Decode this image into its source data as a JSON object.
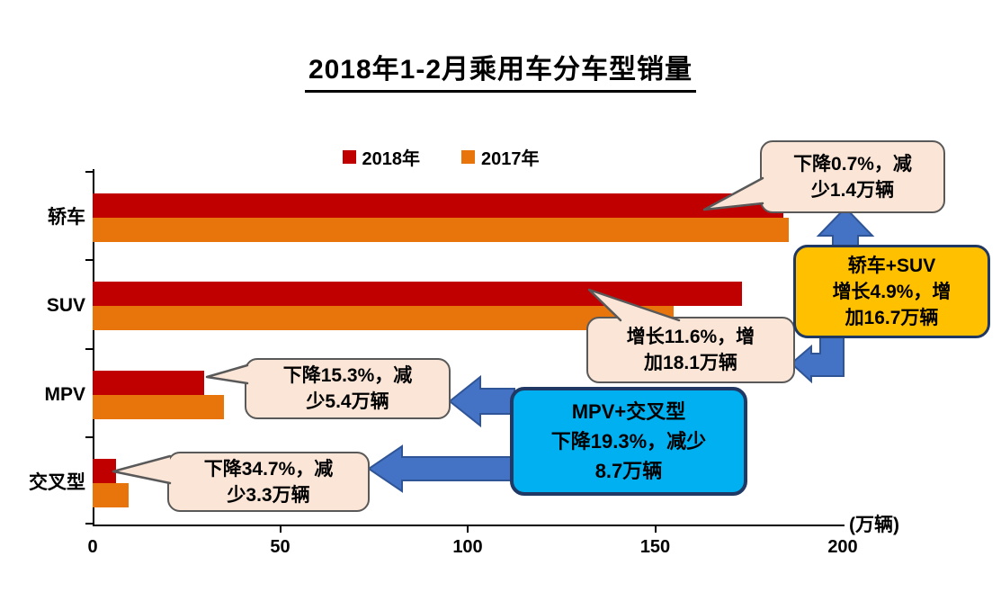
{
  "chart_data": {
    "type": "bar",
    "orientation": "horizontal",
    "title": "2018年1-2月乘用车分车型销量",
    "categories": [
      "轿车",
      "SUV",
      "MPV",
      "交叉型"
    ],
    "series": [
      {
        "name": "2018年",
        "color": "#C00000",
        "values": [
          184.2,
          173.1,
          29.7,
          6.3
        ]
      },
      {
        "name": "2017年",
        "color": "#E8740C",
        "values": [
          185.6,
          155.0,
          35.1,
          9.6
        ]
      }
    ],
    "xlim": [
      0,
      200
    ],
    "xticks": [
      0,
      50,
      100,
      150,
      200
    ],
    "unit_label": "(万辆)",
    "grid": false,
    "legend_position": "top",
    "annotations": {
      "sedan_callout": {
        "text": "下降0.7%，减\n少1.4万辆",
        "shape": "speech-bubble",
        "fill": "#FBE5D6",
        "border": "#595959"
      },
      "suv_callout": {
        "text": "增长11.6%，增\n加18.1万辆",
        "shape": "speech-bubble",
        "fill": "#FBE5D6",
        "border": "#595959"
      },
      "mpv_callout": {
        "text": "下降15.3%，减\n少5.4万辆",
        "shape": "speech-bubble",
        "fill": "#FBE5D6",
        "border": "#595959"
      },
      "cross_callout": {
        "text": "下降34.7%，减\n少3.3万辆",
        "shape": "speech-bubble",
        "fill": "#FBE5D6",
        "border": "#595959"
      },
      "sedan_suv_box": {
        "text": "轿车+SUV\n增长4.9%，增\n加16.7万辆",
        "shape": "rounded-box",
        "fill": "#FFC000",
        "border": "#1F3864"
      },
      "mpv_cross_box": {
        "text": "MPV+交叉型\n下降19.3%，减少\n8.7万辆",
        "shape": "rounded-box",
        "fill": "#00B0F0",
        "border": "#1F3864"
      }
    },
    "arrow_color": "#4472C4",
    "arrow_border": "#2F5597"
  }
}
